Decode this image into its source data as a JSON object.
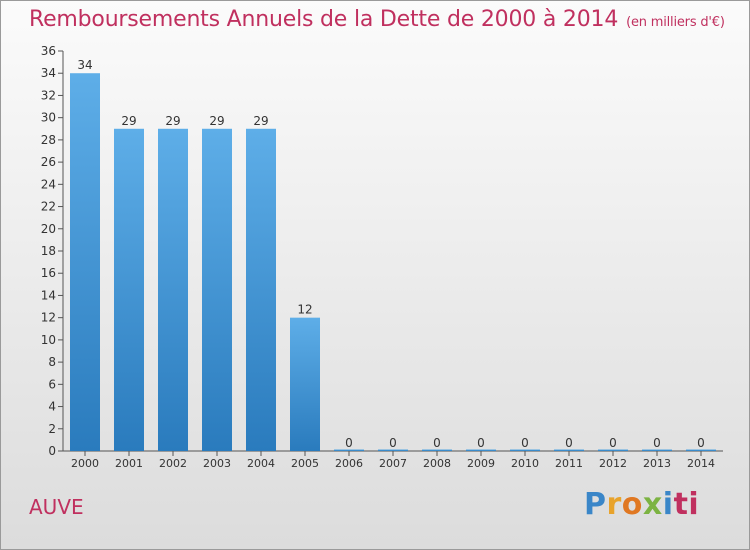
{
  "header": {
    "title": "Remboursements Annuels de la Dette de 2000 à 2014",
    "unit": "(en milliers d'€)"
  },
  "footer": {
    "commune": "AUVE",
    "logo_letters": [
      "P",
      "r",
      "o",
      "x",
      "i",
      "ti"
    ]
  },
  "colors": {
    "title": "#c0305f",
    "bar_top": "#5eaee8",
    "bar_bottom": "#2a7bbd"
  },
  "chart_data": {
    "type": "bar",
    "categories": [
      "2000",
      "2001",
      "2002",
      "2003",
      "2004",
      "2005",
      "2006",
      "2007",
      "2008",
      "2009",
      "2010",
      "2011",
      "2012",
      "2013",
      "2014"
    ],
    "values": [
      34,
      29,
      29,
      29,
      29,
      12,
      0,
      0,
      0,
      0,
      0,
      0,
      0,
      0,
      0
    ],
    "data_labels": [
      "34",
      "29",
      "29",
      "29",
      "29",
      "12",
      "0",
      "0",
      "0",
      "0",
      "0",
      "0",
      "0",
      "0",
      "0"
    ],
    "yticks": [
      "0",
      "2",
      "4",
      "6",
      "8",
      "10",
      "12",
      "14",
      "16",
      "18",
      "20",
      "22",
      "24",
      "26",
      "28",
      "30",
      "32",
      "34",
      "36"
    ],
    "ylim": [
      0,
      36
    ],
    "grid": false,
    "legend": "none",
    "title": "Remboursements Annuels de la Dette de 2000 à 2014",
    "xlabel": "",
    "ylabel": ""
  }
}
